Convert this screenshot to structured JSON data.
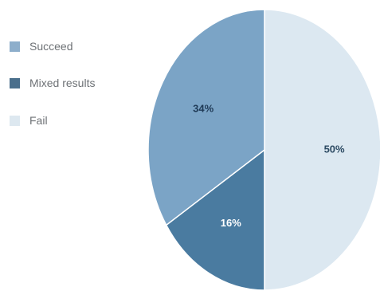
{
  "chart_data": {
    "type": "pie",
    "slices": [
      {
        "label": "Fail",
        "value": 50,
        "display": "50%",
        "color": "#dce8f1",
        "text_color": "#2c4a63"
      },
      {
        "label": "Mixed results",
        "value": 16,
        "display": "16%",
        "color": "#4a7ba0",
        "text_color": "#ffffff"
      },
      {
        "label": "Succeed",
        "value": 34,
        "display": "34%",
        "color": "#7ba4c6",
        "text_color": "#1f3a56"
      }
    ],
    "legend": [
      {
        "label": "Succeed",
        "color": "#8daecb"
      },
      {
        "label": "Mixed results",
        "color": "#4a6f8c"
      },
      {
        "label": "Fail",
        "color": "#dde8f0"
      }
    ],
    "legend_position": "left",
    "start_angle": "top, clockwise"
  }
}
